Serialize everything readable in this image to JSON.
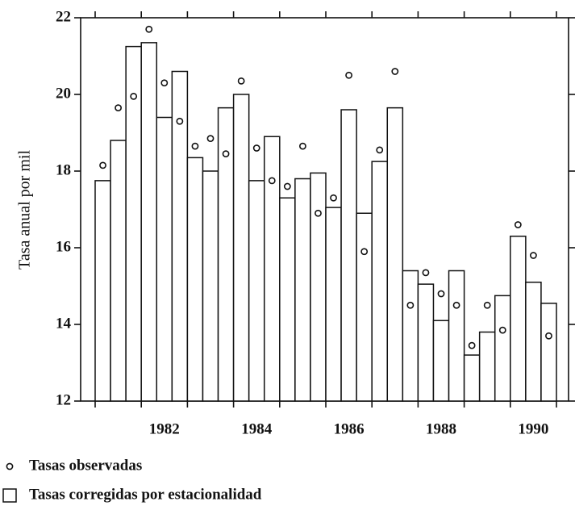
{
  "chart_data": {
    "type": "bar",
    "y_label": "Tasa anual por mil",
    "categories": [
      null,
      null,
      null,
      null,
      "1982",
      null,
      null,
      null,
      null,
      null,
      "1984",
      null,
      null,
      null,
      null,
      null,
      "1986",
      null,
      null,
      null,
      null,
      null,
      "1988",
      null,
      null,
      null,
      null,
      null,
      "1990",
      null
    ],
    "series": [
      {
        "name": "Tasas observadas",
        "type": "scatter",
        "color": "#111111",
        "values": [
          18.15,
          19.65,
          19.95,
          21.7,
          20.3,
          19.3,
          18.65,
          18.85,
          18.45,
          20.35,
          18.6,
          17.75,
          17.6,
          18.65,
          16.9,
          17.3,
          20.5,
          15.9,
          18.55,
          20.6,
          14.5,
          15.35,
          14.8,
          14.5,
          13.45,
          14.5,
          13.85,
          16.6,
          15.8,
          13.7
        ]
      },
      {
        "name": "Tasas corregidas por estacionalidad",
        "type": "bar",
        "color": "#111111",
        "values": [
          17.75,
          18.8,
          21.25,
          21.35,
          19.4,
          20.6,
          18.35,
          18.0,
          19.65,
          20.0,
          17.75,
          18.9,
          17.3,
          17.8,
          17.95,
          17.05,
          19.6,
          16.9,
          18.25,
          19.65,
          15.4,
          15.05,
          14.1,
          15.4,
          13.2,
          13.8,
          14.75,
          16.3,
          15.1,
          14.55
        ]
      }
    ],
    "ylim": [
      12,
      22
    ],
    "yticks": [
      12,
      14,
      16,
      18,
      20,
      22
    ]
  }
}
